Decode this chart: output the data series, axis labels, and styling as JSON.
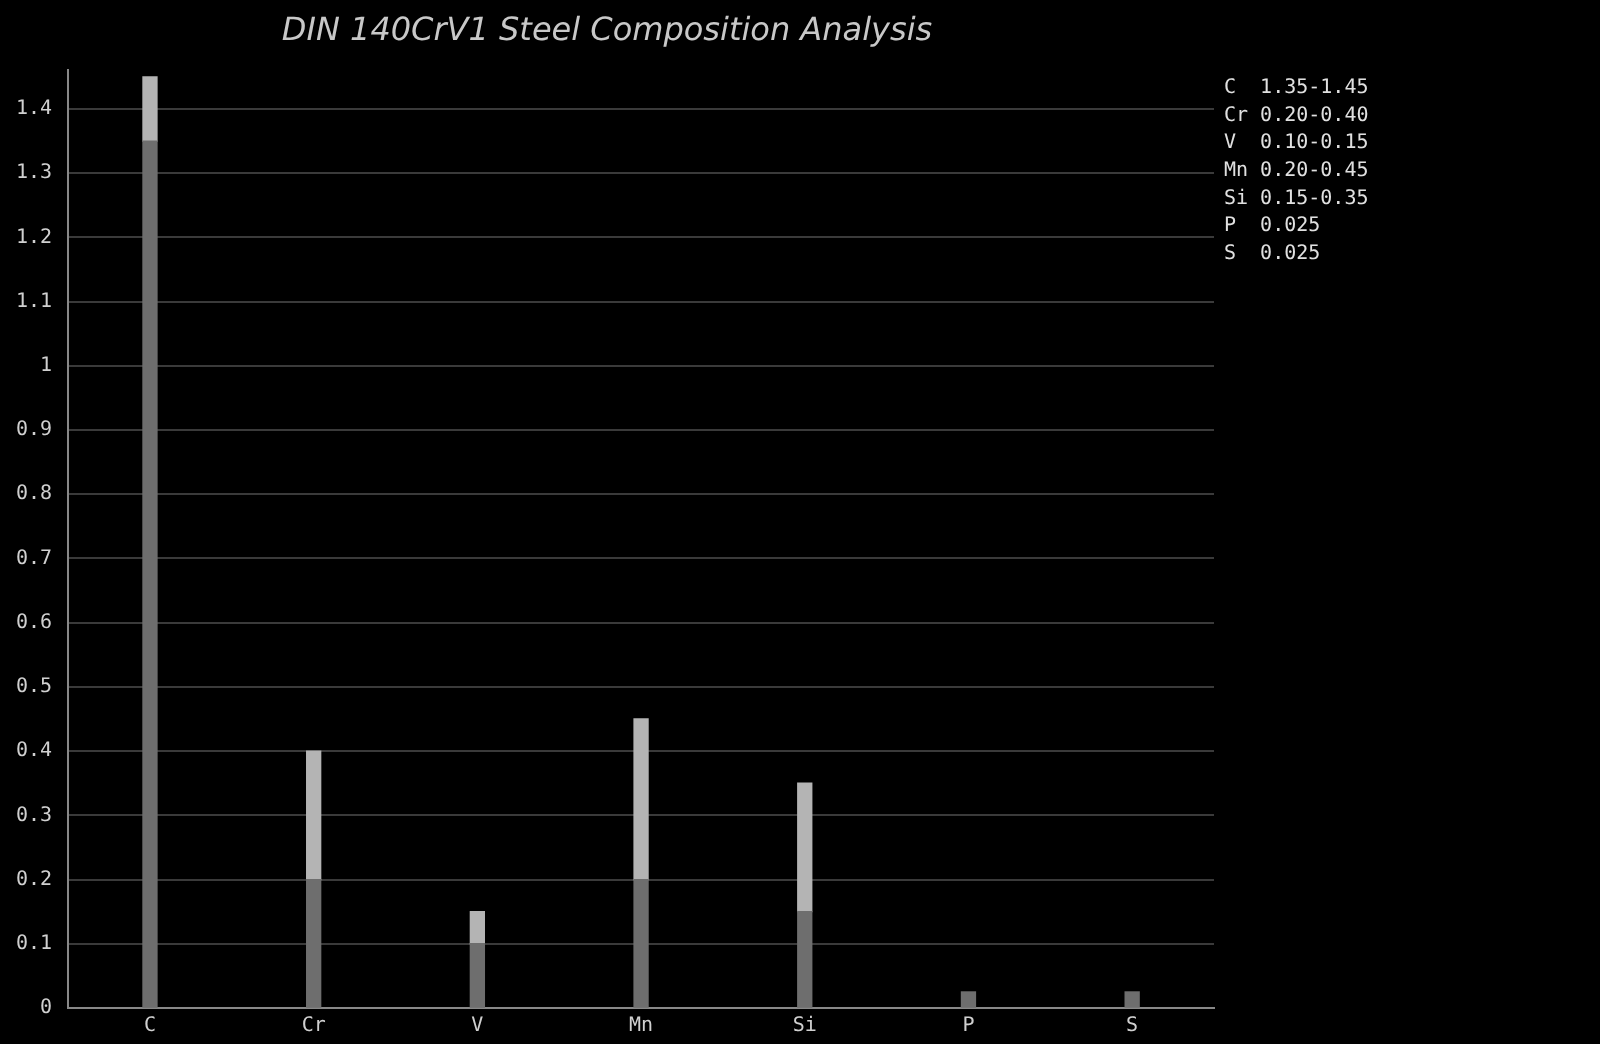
{
  "chart_data": {
    "type": "bar",
    "title": "DIN 140CrV1 Steel Composition Analysis",
    "categories": [
      "C",
      "Cr",
      "V",
      "Mn",
      "Si",
      "P",
      "S"
    ],
    "stacked": true,
    "series": [
      {
        "color": "#6e6e6e",
        "values": [
          1.35,
          0.2,
          0.1,
          0.2,
          0.15,
          0.025,
          0.025
        ]
      },
      {
        "color": "#b4b4b4",
        "values": [
          0.1,
          0.2,
          0.05,
          0.25,
          0.2,
          null,
          null
        ]
      }
    ],
    "ylim": [
      0,
      1.46
    ],
    "yticks": [
      0,
      0.1,
      0.2,
      0.3,
      0.4,
      0.5,
      0.6,
      0.7,
      0.8,
      0.9,
      1,
      1.1,
      1.2,
      1.3,
      1.4
    ],
    "grid": "y",
    "legend": false,
    "annotations": [
      "C  1.35-1.45",
      "Cr 0.20-0.40",
      "V  0.10-0.15",
      "Mn 0.20-0.45",
      "Si 0.15-0.35",
      "P  0.025",
      "S  0.025"
    ]
  }
}
